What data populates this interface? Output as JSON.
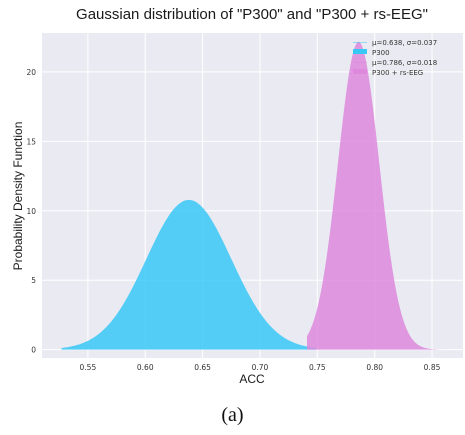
{
  "chart_data": {
    "type": "area",
    "title": "Gaussian distribution of \"P300\" and \"P300 + rs-EEG\"",
    "xlabel": "ACC",
    "ylabel": "Probability Density Function",
    "xlim": [
      0.51,
      0.877
    ],
    "ylim": [
      -0.6,
      22.8
    ],
    "xticks": [
      0.55,
      0.6,
      0.65,
      0.7,
      0.75,
      0.8,
      0.85
    ],
    "xtick_labels": [
      "0.55",
      "0.60",
      "0.65",
      "0.70",
      "0.75",
      "0.80",
      "0.85"
    ],
    "yticks": [
      0,
      5,
      10,
      15,
      20
    ],
    "ytick_labels": [
      "0",
      "5",
      "10",
      "15",
      "20"
    ],
    "grid": true,
    "legend_position": "top-right",
    "series": [
      {
        "name": "P300",
        "line_label": "μ=0.638, σ=0.037",
        "mu": 0.638,
        "sigma": 0.037,
        "x_range": [
          0.527,
          0.749
        ],
        "color": "#38c8f6"
      },
      {
        "name": "P300 + rs-EEG",
        "line_label": "μ=0.786, σ=0.018",
        "mu": 0.786,
        "sigma": 0.018,
        "x_range": [
          0.741,
          0.86
        ],
        "color": "#dd88dd"
      }
    ]
  },
  "caption": "(a)"
}
